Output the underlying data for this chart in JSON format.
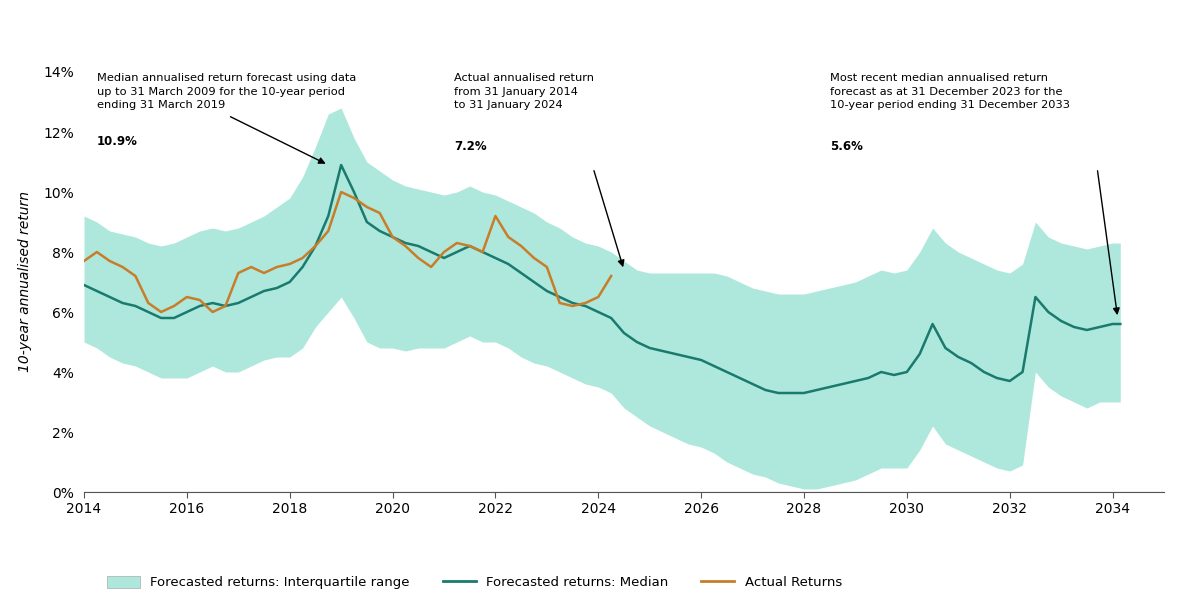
{
  "ylabel": "10-year annualised return",
  "xlim": [
    2014,
    2035
  ],
  "ylim": [
    0,
    0.14
  ],
  "yticks": [
    0,
    0.02,
    0.04,
    0.06,
    0.08,
    0.1,
    0.12,
    0.14
  ],
  "ytick_labels": [
    "0%",
    "2%",
    "4%",
    "6%",
    "8%",
    "10%",
    "12%",
    "14%"
  ],
  "xticks": [
    2014,
    2016,
    2018,
    2020,
    2022,
    2024,
    2026,
    2028,
    2030,
    2032,
    2034
  ],
  "median_color": "#1a7a6e",
  "actual_color": "#c87d2a",
  "band_color": "#aee8dc",
  "legend_labels": [
    "Forecasted returns: Interquartile range",
    "Forecasted returns: Median",
    "Actual Returns"
  ],
  "median_x": [
    2014.0,
    2014.25,
    2014.5,
    2014.75,
    2015.0,
    2015.25,
    2015.5,
    2015.75,
    2016.0,
    2016.25,
    2016.5,
    2016.75,
    2017.0,
    2017.25,
    2017.5,
    2017.75,
    2018.0,
    2018.25,
    2018.5,
    2018.75,
    2019.0,
    2019.25,
    2019.5,
    2019.75,
    2020.0,
    2020.25,
    2020.5,
    2020.75,
    2021.0,
    2021.25,
    2021.5,
    2021.75,
    2022.0,
    2022.25,
    2022.5,
    2022.75,
    2023.0,
    2023.25,
    2023.5,
    2023.75,
    2024.0,
    2024.25,
    2024.5,
    2024.75,
    2025.0,
    2025.25,
    2025.5,
    2025.75,
    2026.0,
    2026.25,
    2026.5,
    2026.75,
    2027.0,
    2027.25,
    2027.5,
    2027.75,
    2028.0,
    2028.25,
    2028.5,
    2028.75,
    2029.0,
    2029.25,
    2029.5,
    2029.75,
    2030.0,
    2030.25,
    2030.5,
    2030.75,
    2031.0,
    2031.25,
    2031.5,
    2031.75,
    2032.0,
    2032.25,
    2032.5,
    2032.75,
    2033.0,
    2033.25,
    2033.5,
    2033.75,
    2034.0,
    2034.15
  ],
  "median_y": [
    0.069,
    0.067,
    0.065,
    0.063,
    0.062,
    0.06,
    0.058,
    0.058,
    0.06,
    0.062,
    0.063,
    0.062,
    0.063,
    0.065,
    0.067,
    0.068,
    0.07,
    0.075,
    0.082,
    0.092,
    0.109,
    0.1,
    0.09,
    0.087,
    0.085,
    0.083,
    0.082,
    0.08,
    0.078,
    0.08,
    0.082,
    0.08,
    0.078,
    0.076,
    0.073,
    0.07,
    0.067,
    0.065,
    0.063,
    0.062,
    0.06,
    0.058,
    0.053,
    0.05,
    0.048,
    0.047,
    0.046,
    0.045,
    0.044,
    0.042,
    0.04,
    0.038,
    0.036,
    0.034,
    0.033,
    0.033,
    0.033,
    0.034,
    0.035,
    0.036,
    0.037,
    0.038,
    0.04,
    0.039,
    0.04,
    0.046,
    0.056,
    0.048,
    0.045,
    0.043,
    0.04,
    0.038,
    0.037,
    0.04,
    0.065,
    0.06,
    0.057,
    0.055,
    0.054,
    0.055,
    0.056,
    0.056
  ],
  "band_upper_y": [
    0.092,
    0.09,
    0.087,
    0.086,
    0.085,
    0.083,
    0.082,
    0.083,
    0.085,
    0.087,
    0.088,
    0.087,
    0.088,
    0.09,
    0.092,
    0.095,
    0.098,
    0.105,
    0.115,
    0.126,
    0.128,
    0.118,
    0.11,
    0.107,
    0.104,
    0.102,
    0.101,
    0.1,
    0.099,
    0.1,
    0.102,
    0.1,
    0.099,
    0.097,
    0.095,
    0.093,
    0.09,
    0.088,
    0.085,
    0.083,
    0.082,
    0.08,
    0.077,
    0.074,
    0.073,
    0.073,
    0.073,
    0.073,
    0.073,
    0.073,
    0.072,
    0.07,
    0.068,
    0.067,
    0.066,
    0.066,
    0.066,
    0.067,
    0.068,
    0.069,
    0.07,
    0.072,
    0.074,
    0.073,
    0.074,
    0.08,
    0.088,
    0.083,
    0.08,
    0.078,
    0.076,
    0.074,
    0.073,
    0.076,
    0.09,
    0.085,
    0.083,
    0.082,
    0.081,
    0.082,
    0.083,
    0.083
  ],
  "band_lower_y": [
    0.05,
    0.048,
    0.045,
    0.043,
    0.042,
    0.04,
    0.038,
    0.038,
    0.038,
    0.04,
    0.042,
    0.04,
    0.04,
    0.042,
    0.044,
    0.045,
    0.045,
    0.048,
    0.055,
    0.06,
    0.065,
    0.058,
    0.05,
    0.048,
    0.048,
    0.047,
    0.048,
    0.048,
    0.048,
    0.05,
    0.052,
    0.05,
    0.05,
    0.048,
    0.045,
    0.043,
    0.042,
    0.04,
    0.038,
    0.036,
    0.035,
    0.033,
    0.028,
    0.025,
    0.022,
    0.02,
    0.018,
    0.016,
    0.015,
    0.013,
    0.01,
    0.008,
    0.006,
    0.005,
    0.003,
    0.002,
    0.001,
    0.001,
    0.002,
    0.003,
    0.004,
    0.006,
    0.008,
    0.008,
    0.008,
    0.014,
    0.022,
    0.016,
    0.014,
    0.012,
    0.01,
    0.008,
    0.007,
    0.009,
    0.04,
    0.035,
    0.032,
    0.03,
    0.028,
    0.03,
    0.03,
    0.03
  ],
  "actual_x": [
    2014.0,
    2014.25,
    2014.5,
    2014.75,
    2015.0,
    2015.25,
    2015.5,
    2015.75,
    2016.0,
    2016.25,
    2016.5,
    2016.75,
    2017.0,
    2017.25,
    2017.5,
    2017.75,
    2018.0,
    2018.25,
    2018.5,
    2018.75,
    2019.0,
    2019.25,
    2019.5,
    2019.75,
    2020.0,
    2020.25,
    2020.5,
    2020.75,
    2021.0,
    2021.25,
    2021.5,
    2021.75,
    2022.0,
    2022.25,
    2022.5,
    2022.75,
    2023.0,
    2023.25,
    2023.5,
    2023.75,
    2024.0,
    2024.25
  ],
  "actual_y": [
    0.077,
    0.08,
    0.077,
    0.075,
    0.072,
    0.063,
    0.06,
    0.062,
    0.065,
    0.064,
    0.06,
    0.062,
    0.073,
    0.075,
    0.073,
    0.075,
    0.076,
    0.078,
    0.082,
    0.087,
    0.1,
    0.098,
    0.095,
    0.093,
    0.085,
    0.082,
    0.078,
    0.075,
    0.08,
    0.083,
    0.082,
    0.08,
    0.092,
    0.085,
    0.082,
    0.078,
    0.075,
    0.063,
    0.062,
    0.063,
    0.065,
    0.072
  ]
}
